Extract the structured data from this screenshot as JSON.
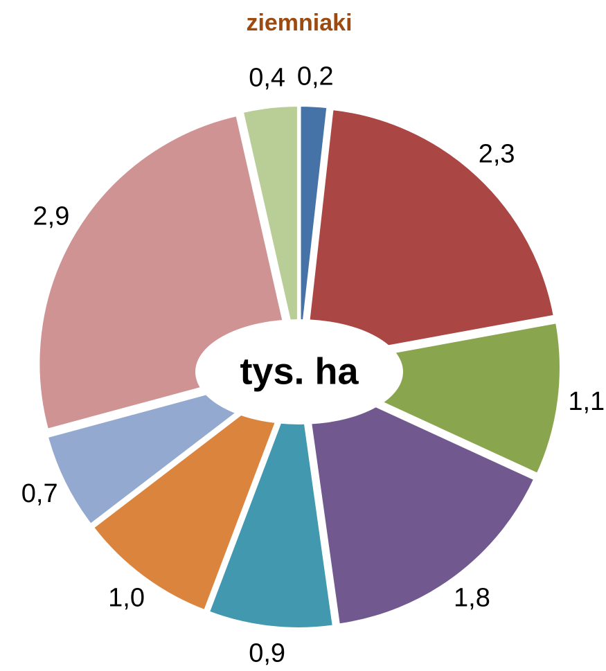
{
  "chart_data": {
    "type": "pie",
    "title": "ziemniaki",
    "center_label": "tys. ha",
    "values": [
      0.2,
      2.3,
      1.1,
      1.8,
      0.9,
      1.0,
      0.7,
      2.9,
      0.4
    ],
    "value_labels": [
      "0,2",
      "2,3",
      "1,1",
      "1,8",
      "0,9",
      "1,0",
      "0,7",
      "2,9",
      "0,4"
    ],
    "colors": [
      "#4572A7",
      "#AA4643",
      "#89A54E",
      "#71588F",
      "#4198AF",
      "#DB843D",
      "#93A9CF",
      "#D09393",
      "#B9CD96"
    ]
  }
}
